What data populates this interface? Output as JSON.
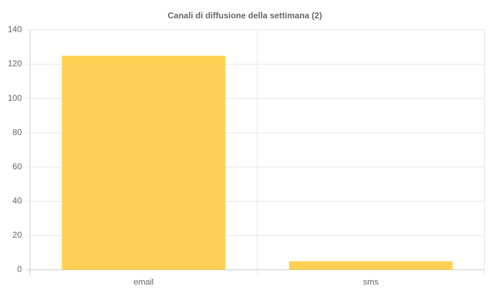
{
  "chart_data": {
    "type": "bar",
    "title": "Canali di diffusione della settimana (2)",
    "categories": [
      "email",
      "sms"
    ],
    "values": [
      125,
      5
    ],
    "color": "#fed154",
    "ylim": [
      0,
      140
    ],
    "yticks": [
      0,
      20,
      40,
      60,
      80,
      100,
      120,
      140
    ],
    "grid": true
  }
}
